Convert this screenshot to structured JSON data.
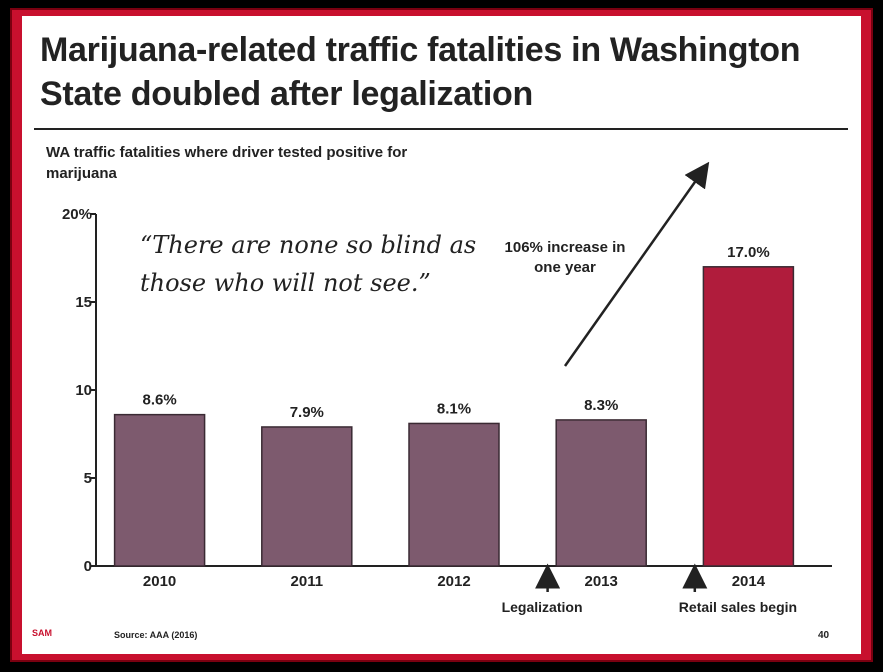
{
  "slide": {
    "title": "Marijuana-related traffic fatalities in Washington State doubled after legalization",
    "quote": "“There are none so blind as those who will not see.”",
    "annotation": "106% increase in one year",
    "footer": {
      "logo_text": "SAM",
      "source": "Source:  AAA (2016)",
      "page_number": "40"
    }
  },
  "colors": {
    "accent_red": "#c8102e",
    "bar_default": "#7d5a6e",
    "bar_highlight": "#b01c3c"
  },
  "chart_data": {
    "type": "bar",
    "title": "WA traffic fatalities where driver tested positive for marijuana",
    "categories": [
      "2010",
      "2011",
      "2012",
      "2013",
      "2014"
    ],
    "values": [
      8.6,
      7.9,
      8.1,
      8.3,
      17.0
    ],
    "value_labels": [
      "8.6%",
      "7.9%",
      "8.1%",
      "8.3%",
      "17.0%"
    ],
    "ylim": [
      0,
      20
    ],
    "yticks": [
      {
        "value": 0,
        "label": "0"
      },
      {
        "value": 5,
        "label": "5"
      },
      {
        "value": 10,
        "label": "10"
      },
      {
        "value": 15,
        "label": "15"
      },
      {
        "value": 20,
        "label": "20%"
      }
    ],
    "highlight_index": 4,
    "events": [
      {
        "between": [
          2,
          3
        ],
        "label": "Legalization"
      },
      {
        "between": [
          3,
          4
        ],
        "label": "Retail sales begin"
      }
    ],
    "grid": false
  }
}
